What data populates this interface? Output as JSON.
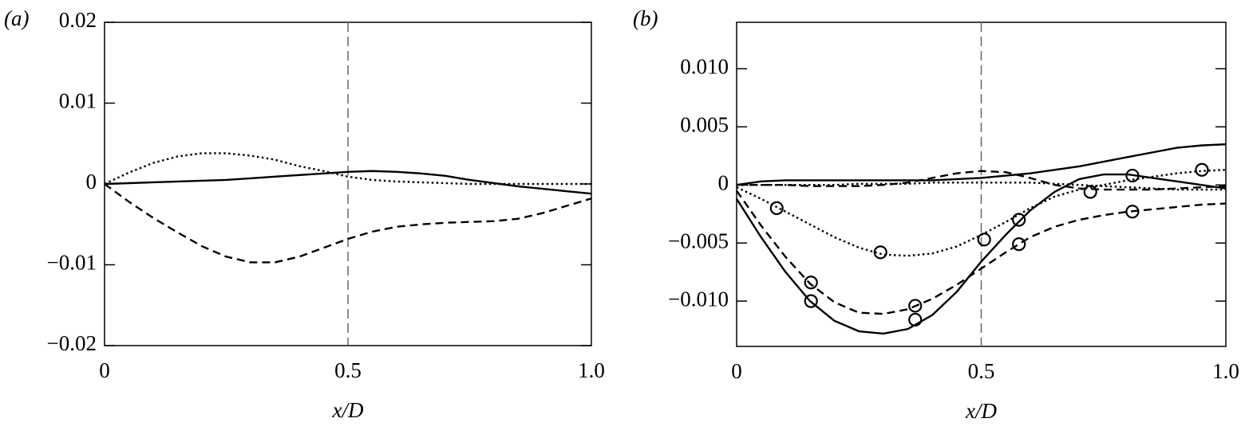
{
  "chart_data": [
    {
      "type": "line",
      "panel_label": "(a)",
      "xlabel": "x/D",
      "xlim": [
        0,
        1
      ],
      "xticks": [
        0,
        0.5,
        {
          "value": 1,
          "label": "1.0"
        }
      ],
      "ylim": [
        -0.02,
        0.02
      ],
      "yticks": [
        {
          "value": -0.02,
          "label": "−0.02"
        },
        {
          "value": -0.01,
          "label": "−0.01"
        },
        0,
        0.01,
        0.02
      ],
      "vline": 0.5,
      "grid": false,
      "x": [
        0,
        0.05,
        0.1,
        0.15,
        0.2,
        0.25,
        0.3,
        0.35,
        0.4,
        0.45,
        0.5,
        0.55,
        0.6,
        0.65,
        0.7,
        0.75,
        0.8,
        0.85,
        0.9,
        0.95,
        1
      ],
      "series": [
        {
          "color": "#000000",
          "style": "solid",
          "values": [
            0,
            0.0001,
            0.0002,
            0.0003,
            0.0004,
            0.0005,
            0.0007,
            0.0009,
            0.0011,
            0.0013,
            0.0015,
            0.0016,
            0.0015,
            0.0013,
            0.001,
            0.0005,
            0.0001,
            -0.0003,
            -0.0006,
            -0.0009,
            -0.0012
          ]
        },
        {
          "color": "#000000",
          "style": "dashed",
          "values": [
            0,
            -0.0022,
            -0.0042,
            -0.006,
            -0.0077,
            -0.009,
            -0.0097,
            -0.0097,
            -0.009,
            -0.0079,
            -0.0068,
            -0.0059,
            -0.0053,
            -0.005,
            -0.0048,
            -0.0047,
            -0.0046,
            -0.0043,
            -0.0036,
            -0.0027,
            -0.0018
          ]
        },
        {
          "color": "#000000",
          "style": "dotted",
          "values": [
            0,
            0.0014,
            0.0026,
            0.0034,
            0.0038,
            0.0038,
            0.0035,
            0.003,
            0.0022,
            0.0016,
            0.0009,
            0.0005,
            0.0003,
            0.0002,
            0.0001,
            0,
            0,
            0,
            0,
            0,
            0
          ]
        }
      ]
    },
    {
      "type": "line",
      "panel_label": "(b)",
      "xlabel": "x/D",
      "xlim": [
        0,
        1
      ],
      "xticks": [
        0,
        0.5,
        {
          "value": 1,
          "label": "1.0"
        }
      ],
      "ylim": [
        -0.0139,
        0.014
      ],
      "yticks": [
        {
          "value": -0.01,
          "label": "−0.010"
        },
        {
          "value": -0.005,
          "label": "−0.005"
        },
        0,
        0.005,
        {
          "value": 0.01,
          "label": "0.010"
        }
      ],
      "vline": 0.5,
      "grid": false,
      "x": [
        0,
        0.05,
        0.1,
        0.15,
        0.2,
        0.25,
        0.3,
        0.35,
        0.4,
        0.45,
        0.5,
        0.55,
        0.6,
        0.65,
        0.7,
        0.75,
        0.8,
        0.85,
        0.9,
        0.95,
        1
      ],
      "series": [
        {
          "color": "#000000",
          "style": "solid",
          "values": [
            0,
            0.0003,
            0.0004,
            0.0004,
            0.0004,
            0.0004,
            0.0004,
            0.0004,
            0.0004,
            0.0005,
            0.0006,
            0.0008,
            0.001,
            0.0013,
            0.0016,
            0.002,
            0.0024,
            0.0028,
            0.0032,
            0.0034,
            0.0035
          ]
        },
        {
          "color": "#000000",
          "style": "dashed",
          "values": [
            0,
            0,
            0,
            -0.0001,
            -0.0001,
            -0.0001,
            0,
            0.0002,
            0.0006,
            0.001,
            0.0012,
            0.0011,
            0.0006,
            0,
            -0.0003,
            -0.0004,
            -0.0004,
            -0.0004,
            -0.0003,
            -0.0002,
            -0.0001
          ]
        },
        {
          "color": "#000000",
          "style": "dotted",
          "values": [
            0,
            0,
            0,
            0,
            0,
            0.0001,
            0.0001,
            0.0001,
            0.0002,
            0.0002,
            0.0002,
            0.0002,
            0.0002,
            0.0001,
            0,
            -0.0001,
            -0.0002,
            -0.0003,
            -0.0004,
            -0.0004,
            -0.0004
          ]
        },
        {
          "color": "#000000",
          "style": "solid",
          "values": [
            -0.0012,
            -0.0045,
            -0.0075,
            -0.01,
            -0.0117,
            -0.0126,
            -0.0128,
            -0.0124,
            -0.0112,
            -0.0092,
            -0.0066,
            -0.0043,
            -0.0022,
            -0.0006,
            0.0005,
            0.0009,
            0.0009,
            0.0006,
            0.0003,
            0,
            -0.0003
          ]
        },
        {
          "color": "#000000",
          "style": "dashed",
          "values": [
            -0.0005,
            -0.0035,
            -0.0062,
            -0.0085,
            -0.0101,
            -0.011,
            -0.0111,
            -0.0107,
            -0.0098,
            -0.0086,
            -0.0072,
            -0.0058,
            -0.0045,
            -0.0036,
            -0.003,
            -0.0026,
            -0.0023,
            -0.0021,
            -0.0019,
            -0.0017,
            -0.0016
          ]
        },
        {
          "color": "#000000",
          "style": "dotted",
          "values": [
            -0.0002,
            -0.0012,
            -0.0023,
            -0.0034,
            -0.0045,
            -0.0054,
            -0.006,
            -0.0061,
            -0.0059,
            -0.0053,
            -0.0043,
            -0.0032,
            -0.002,
            -0.001,
            -0.0004,
            0,
            0.0004,
            0.0007,
            0.001,
            0.0012,
            0.0013
          ]
        },
        {
          "color": "#000000",
          "style": "circles",
          "x": [
            0.082,
            0.152,
            0.152,
            0.294,
            0.365,
            0.365,
            0.506,
            0.577,
            0.577,
            0.723,
            0.809,
            0.809,
            0.951
          ],
          "values": [
            -0.002,
            -0.0084,
            -0.01,
            -0.0058,
            -0.0104,
            -0.0116,
            -0.0047,
            -0.003,
            -0.0051,
            -0.0006,
            0.0008,
            -0.0023,
            0.0013
          ]
        }
      ]
    }
  ]
}
